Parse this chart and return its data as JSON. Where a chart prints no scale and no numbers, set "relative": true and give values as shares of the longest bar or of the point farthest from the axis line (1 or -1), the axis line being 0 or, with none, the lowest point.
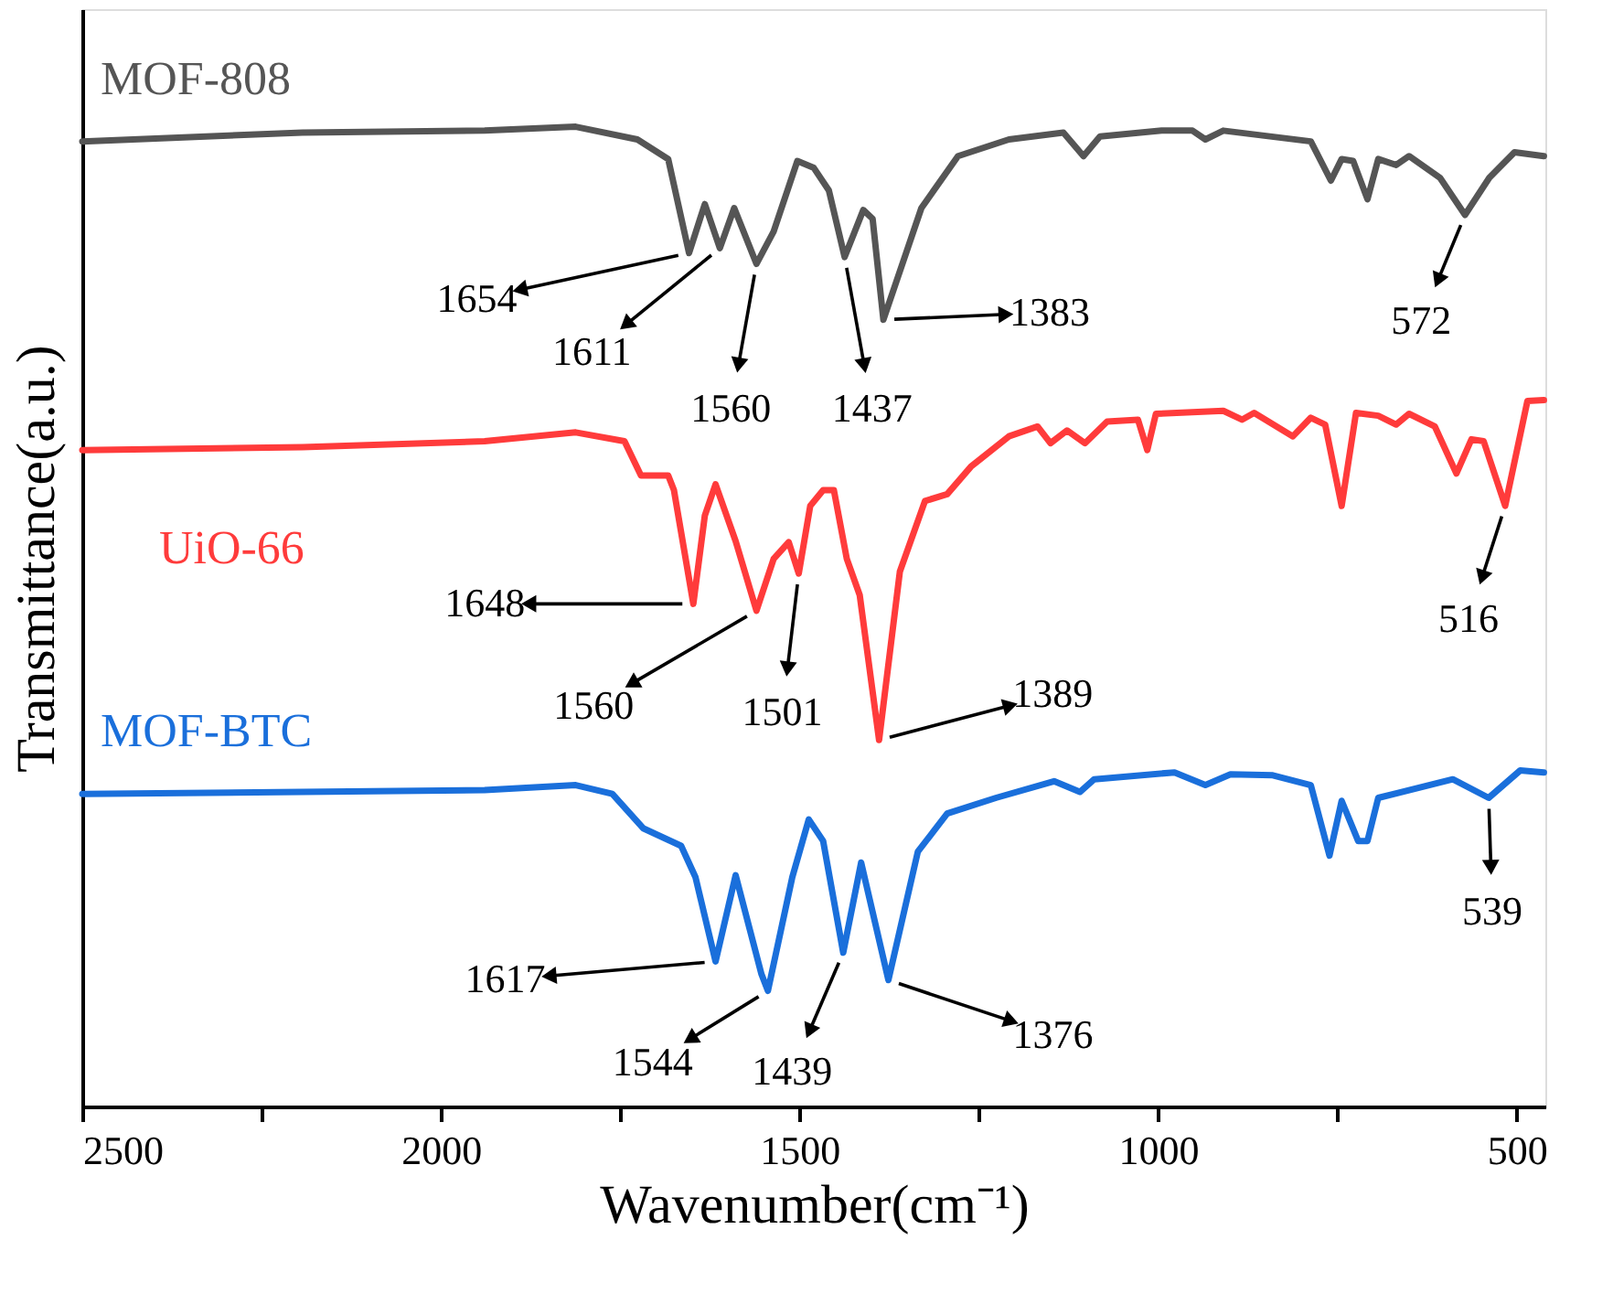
{
  "chart_data": {
    "type": "line",
    "relative": true,
    "xlabel": "Wavenumber(cm⁻¹)",
    "ylabel": "Transmittance(a.u.)",
    "xlim": [
      2500,
      460
    ],
    "xticks": [
      2500,
      {
        "value": 2250,
        "label": null
      },
      2000,
      {
        "value": 1750,
        "label": null
      },
      1500,
      {
        "value": 1250,
        "label": null
      },
      1000,
      {
        "value": 750,
        "label": null
      },
      500
    ],
    "grid": false,
    "legend": false,
    "line_style": "solid",
    "marker": "none",
    "series": [
      {
        "name": "MOF-808",
        "color": "#555555",
        "x": [
          2500,
          2193,
          1939,
          1812,
          1726,
          1683,
          1654,
          1632,
          1611,
          1591,
          1560,
          1536,
          1503,
          1480,
          1459,
          1437,
          1411,
          1398,
          1383,
          1330,
          1279,
          1208,
          1132,
          1104,
          1081,
          995,
          952,
          934,
          909,
          787,
          759,
          744,
          728,
          708,
          693,
          668,
          650,
          607,
          572,
          538,
          503,
          462
        ],
        "values": [
          0.985,
          0.994,
          0.996,
          1.0,
          0.987,
          0.967,
          0.871,
          0.921,
          0.876,
          0.917,
          0.86,
          0.893,
          0.965,
          0.958,
          0.935,
          0.867,
          0.915,
          0.906,
          0.803,
          0.917,
          0.97,
          0.987,
          0.994,
          0.97,
          0.99,
          0.996,
          0.996,
          0.987,
          0.996,
          0.985,
          0.945,
          0.967,
          0.965,
          0.926,
          0.967,
          0.961,
          0.97,
          0.948,
          0.91,
          0.948,
          0.974,
          0.97
        ]
      },
      {
        "name": "UiO-66",
        "color": "#ff3b3b",
        "x": [
          2500,
          2193,
          1939,
          1812,
          1744,
          1721,
          1683,
          1675,
          1648,
          1632,
          1617,
          1589,
          1560,
          1536,
          1515,
          1501,
          1485,
          1467,
          1452,
          1434,
          1416,
          1389,
          1360,
          1325,
          1294,
          1261,
          1208,
          1168,
          1150,
          1127,
          1102,
          1071,
          1028,
          1015,
          1003,
          909,
          883,
          866,
          812,
          787,
          767,
          744,
          724,
          693,
          668,
          650,
          614,
          584,
          563,
          546,
          516,
          485,
          462
        ],
        "values": [
          0.67,
          0.673,
          0.679,
          0.688,
          0.679,
          0.644,
          0.644,
          0.629,
          0.513,
          0.603,
          0.635,
          0.577,
          0.506,
          0.559,
          0.576,
          0.544,
          0.613,
          0.629,
          0.629,
          0.559,
          0.522,
          0.374,
          0.546,
          0.618,
          0.625,
          0.653,
          0.684,
          0.694,
          0.677,
          0.69,
          0.677,
          0.699,
          0.701,
          0.67,
          0.707,
          0.71,
          0.701,
          0.708,
          0.684,
          0.703,
          0.696,
          0.613,
          0.708,
          0.705,
          0.696,
          0.707,
          0.694,
          0.646,
          0.681,
          0.679,
          0.613,
          0.72,
          0.721
        ]
      },
      {
        "name": "MOF-BTC",
        "color": "#1a6fdb",
        "x": [
          2500,
          2193,
          1939,
          1812,
          1761,
          1718,
          1665,
          1645,
          1617,
          1589,
          1553,
          1544,
          1510,
          1487,
          1467,
          1439,
          1414,
          1376,
          1335,
          1294,
          1226,
          1145,
          1109,
          1089,
          977,
          934,
          899,
          840,
          787,
          761,
          744,
          721,
          708,
          693,
          589,
          539,
          495,
          462
        ],
        "values": [
          0.319,
          0.321,
          0.323,
          0.328,
          0.319,
          0.284,
          0.266,
          0.234,
          0.148,
          0.236,
          0.135,
          0.118,
          0.234,
          0.293,
          0.271,
          0.157,
          0.249,
          0.129,
          0.26,
          0.299,
          0.315,
          0.332,
          0.321,
          0.334,
          0.341,
          0.328,
          0.339,
          0.338,
          0.328,
          0.256,
          0.312,
          0.271,
          0.271,
          0.315,
          0.334,
          0.315,
          0.343,
          0.341
        ]
      }
    ],
    "annotations": [
      {
        "text": "1654",
        "x": 1654,
        "y": 0.871
      },
      {
        "text": "1611",
        "x": 1611,
        "y": 0.876
      },
      {
        "text": "1560",
        "x": 1560,
        "y": 0.86
      },
      {
        "text": "1437",
        "x": 1437,
        "y": 0.867
      },
      {
        "text": "1383",
        "x": 1383,
        "y": 0.803
      },
      {
        "text": "572",
        "x": 572,
        "y": 0.91
      },
      {
        "text": "1648",
        "x": 1648,
        "y": 0.513
      },
      {
        "text": "1560",
        "x": 1560,
        "y": 0.506
      },
      {
        "text": "1501",
        "x": 1501,
        "y": 0.544
      },
      {
        "text": "1389",
        "x": 1389,
        "y": 0.374
      },
      {
        "text": "516",
        "x": 516,
        "y": 0.613
      },
      {
        "text": "1617",
        "x": 1617,
        "y": 0.148
      },
      {
        "text": "1544",
        "x": 1544,
        "y": 0.118
      },
      {
        "text": "1439",
        "x": 1439,
        "y": 0.157
      },
      {
        "text": "1376",
        "x": 1376,
        "y": 0.129
      },
      {
        "text": "539",
        "x": 539,
        "y": 0.315
      }
    ]
  }
}
